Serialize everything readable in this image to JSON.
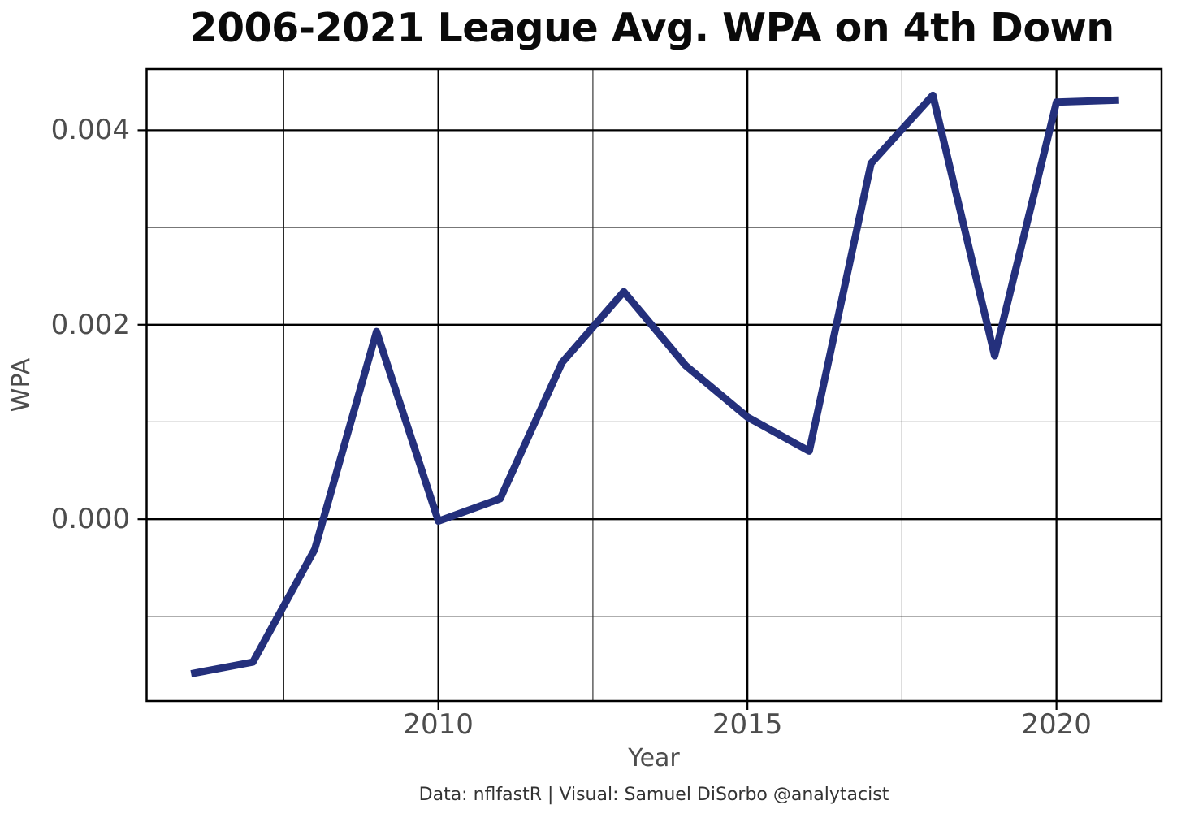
{
  "chart_data": {
    "type": "line",
    "title": "2006-2021 League Avg. WPA on 4th Down",
    "xlabel": "Year",
    "ylabel": "WPA",
    "caption": "Data: nflfastR | Visual: Samuel DiSorbo @analytacist",
    "x": [
      2006,
      2007,
      2008,
      2009,
      2010,
      2011,
      2012,
      2013,
      2014,
      2015,
      2016,
      2017,
      2018,
      2019,
      2020,
      2021
    ],
    "series": [
      {
        "name": "League average WPA on 4th down",
        "values": [
          -0.00159,
          -0.00147,
          -0.00031,
          0.00193,
          -2e-05,
          0.00021,
          0.00161,
          0.00234,
          0.00158,
          0.00105,
          0.0007,
          0.00366,
          0.00436,
          0.00168,
          0.00429,
          0.00431
        ]
      }
    ],
    "x_domain": [
      2005.28,
      2021.7
    ],
    "y_domain": [
      -0.00187,
      0.00463
    ],
    "x_ticks": {
      "major": [
        2010,
        2015,
        2020
      ],
      "labels": [
        "2010",
        "2015",
        "2020"
      ],
      "minor": [
        2007.5,
        2012.5,
        2017.5
      ]
    },
    "y_ticks": {
      "major": [
        0.0,
        0.002,
        0.004
      ],
      "labels": [
        "0.000",
        "0.002",
        "0.004"
      ],
      "minor": [
        -0.001,
        0.001,
        0.003
      ]
    },
    "grid": "on",
    "legend_position": "none",
    "colors": {
      "line": "#24307C",
      "grid_major": "#000000",
      "grid_minor": "#262626",
      "panel_border": "#000000",
      "tick_mark": "#000000",
      "axis_text": "#4d4d4d",
      "title_text": "#0a0a0a",
      "caption_text": "#333333",
      "background": "#ffffff"
    }
  }
}
